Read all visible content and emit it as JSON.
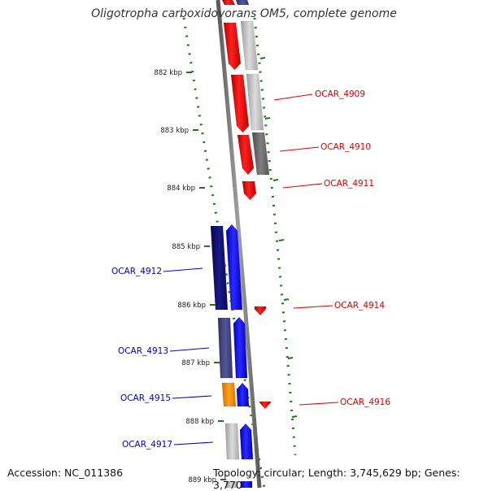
{
  "title": "Oligotropha carboxidovorans OM5, complete genome",
  "footer": {
    "accession": "Accession: NC_011386",
    "topology": "Topology: circular; Length: 3,745,629 bp; Genes: 3,770"
  },
  "colors": {
    "backbone": "#808080",
    "tick": "#1a7a1a",
    "forward_gene": "#1010ff",
    "reverse_gene": "#ff0000",
    "label_blue": "#0000cc",
    "label_red": "#dd0000",
    "cog_navy": "#11117a",
    "cog_slate": "#4a4a86",
    "cog_gray_light": "#c8c8c8",
    "cog_gray_dark": "#6e6e6e",
    "cog_orange": "#ff9900"
  },
  "ticks": [
    {
      "label": "882 kbp"
    },
    {
      "label": "883 kbp"
    },
    {
      "label": "884 kbp"
    },
    {
      "label": "885 kbp"
    },
    {
      "label": "886 kbp"
    },
    {
      "label": "887 kbp"
    },
    {
      "label": "888 kbp"
    },
    {
      "label": "889 kbp"
    }
  ],
  "gene_labels": [
    {
      "name": "OCAR_4909",
      "strand": "reverse"
    },
    {
      "name": "OCAR_4910",
      "strand": "reverse"
    },
    {
      "name": "OCAR_4911",
      "strand": "reverse"
    },
    {
      "name": "OCAR_4912",
      "strand": "forward"
    },
    {
      "name": "OCAR_4914",
      "strand": "reverse"
    },
    {
      "name": "OCAR_4913",
      "strand": "forward"
    },
    {
      "name": "OCAR_4915",
      "strand": "forward"
    },
    {
      "name": "OCAR_4916",
      "strand": "reverse"
    },
    {
      "name": "OCAR_4917",
      "strand": "forward"
    }
  ]
}
